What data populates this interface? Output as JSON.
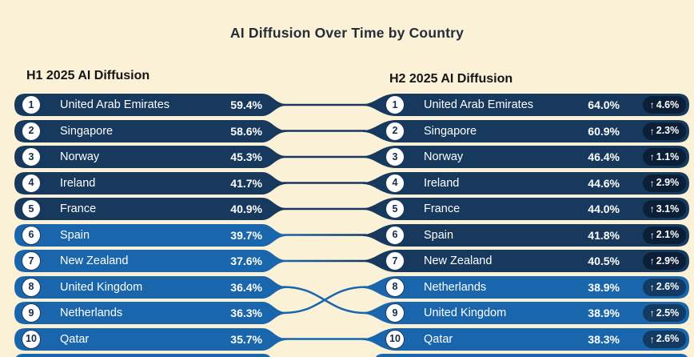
{
  "title": "AI Diffusion Over Time by Country",
  "columns": {
    "left_header": "H1 2025 AI Diffusion",
    "right_header": "H2 2025 AI Diffusion"
  },
  "icons": {
    "up_arrow": "↑"
  },
  "palette": {
    "bg": "#fbf1d7",
    "dark_pill": "#17395e",
    "light_pill": "#1966ad",
    "badge_dark": "#0b1f36",
    "badge_light": "#123a63",
    "ring": "#1b3a5f",
    "rank_text": "#132c4a",
    "title_color": "#262c38",
    "header_color": "#141414"
  },
  "rows": [
    {
      "left": {
        "rank": "1",
        "country": "United Arab Emirates",
        "pct": "59.4%",
        "theme": "dark"
      },
      "right": {
        "rank": "1",
        "country": "United Arab Emirates",
        "pct": "64.0%",
        "delta": "4.6%",
        "theme": "dark"
      }
    },
    {
      "left": {
        "rank": "2",
        "country": "Singapore",
        "pct": "58.6%",
        "theme": "dark"
      },
      "right": {
        "rank": "2",
        "country": "Singapore",
        "pct": "60.9%",
        "delta": "2.3%",
        "theme": "dark"
      }
    },
    {
      "left": {
        "rank": "3",
        "country": "Norway",
        "pct": "45.3%",
        "theme": "dark"
      },
      "right": {
        "rank": "3",
        "country": "Norway",
        "pct": "46.4%",
        "delta": "1.1%",
        "theme": "dark"
      }
    },
    {
      "left": {
        "rank": "4",
        "country": "Ireland",
        "pct": "41.7%",
        "theme": "dark"
      },
      "right": {
        "rank": "4",
        "country": "Ireland",
        "pct": "44.6%",
        "delta": "2.9%",
        "theme": "dark"
      }
    },
    {
      "left": {
        "rank": "5",
        "country": "France",
        "pct": "40.9%",
        "theme": "dark"
      },
      "right": {
        "rank": "5",
        "country": "France",
        "pct": "44.0%",
        "delta": "3.1%",
        "theme": "dark"
      }
    },
    {
      "left": {
        "rank": "6",
        "country": "Spain",
        "pct": "39.7%",
        "theme": "light"
      },
      "right": {
        "rank": "6",
        "country": "Spain",
        "pct": "41.8%",
        "delta": "2.1%",
        "theme": "dark"
      }
    },
    {
      "left": {
        "rank": "7",
        "country": "New Zealand",
        "pct": "37.6%",
        "theme": "light"
      },
      "right": {
        "rank": "7",
        "country": "New Zealand",
        "pct": "40.5%",
        "delta": "2.9%",
        "theme": "dark"
      }
    },
    {
      "left": {
        "rank": "8",
        "country": "United Kingdom",
        "pct": "36.4%",
        "theme": "light"
      },
      "right": {
        "rank": "8",
        "country": "Netherlands",
        "pct": "38.9%",
        "delta": "2.6%",
        "theme": "light"
      }
    },
    {
      "left": {
        "rank": "9",
        "country": "Netherlands",
        "pct": "36.3%",
        "theme": "light"
      },
      "right": {
        "rank": "9",
        "country": "United Kingdom",
        "pct": "38.9%",
        "delta": "2.5%",
        "theme": "light"
      }
    },
    {
      "left": {
        "rank": "10",
        "country": "Qatar",
        "pct": "35.7%",
        "theme": "light"
      },
      "right": {
        "rank": "10",
        "country": "Qatar",
        "pct": "38.3%",
        "delta": "2.6%",
        "theme": "light"
      }
    }
  ],
  "chart_data": {
    "type": "table",
    "title": "AI Diffusion Over Time by Country",
    "legend_position": "none",
    "series": [
      {
        "name": "H1 2025 AI Diffusion",
        "unit": "%",
        "ranking": [
          {
            "rank": 1,
            "country": "United Arab Emirates",
            "value": 59.4
          },
          {
            "rank": 2,
            "country": "Singapore",
            "value": 58.6
          },
          {
            "rank": 3,
            "country": "Norway",
            "value": 45.3
          },
          {
            "rank": 4,
            "country": "Ireland",
            "value": 41.7
          },
          {
            "rank": 5,
            "country": "France",
            "value": 40.9
          },
          {
            "rank": 6,
            "country": "Spain",
            "value": 39.7
          },
          {
            "rank": 7,
            "country": "New Zealand",
            "value": 37.6
          },
          {
            "rank": 8,
            "country": "United Kingdom",
            "value": 36.4
          },
          {
            "rank": 9,
            "country": "Netherlands",
            "value": 36.3
          },
          {
            "rank": 10,
            "country": "Qatar",
            "value": 35.7
          }
        ]
      },
      {
        "name": "H2 2025 AI Diffusion",
        "unit": "%",
        "ranking": [
          {
            "rank": 1,
            "country": "United Arab Emirates",
            "value": 64.0,
            "change": 4.6
          },
          {
            "rank": 2,
            "country": "Singapore",
            "value": 60.9,
            "change": 2.3
          },
          {
            "rank": 3,
            "country": "Norway",
            "value": 46.4,
            "change": 1.1
          },
          {
            "rank": 4,
            "country": "Ireland",
            "value": 44.6,
            "change": 2.9
          },
          {
            "rank": 5,
            "country": "France",
            "value": 44.0,
            "change": 3.1
          },
          {
            "rank": 6,
            "country": "Spain",
            "value": 41.8,
            "change": 2.1
          },
          {
            "rank": 7,
            "country": "New Zealand",
            "value": 40.5,
            "change": 2.9
          },
          {
            "rank": 8,
            "country": "Netherlands",
            "value": 38.9,
            "change": 2.6
          },
          {
            "rank": 9,
            "country": "United Kingdom",
            "value": 38.9,
            "change": 2.5
          },
          {
            "rank": 10,
            "country": "Qatar",
            "value": 38.3,
            "change": 2.6
          }
        ]
      }
    ],
    "notes": "Bump/ranking chart; dark pills = value >= 40%, light pills = value < 40%; connector lines link each country's H1 rank to its H2 rank (United Kingdom and Netherlands swap ranks 8/9)."
  }
}
